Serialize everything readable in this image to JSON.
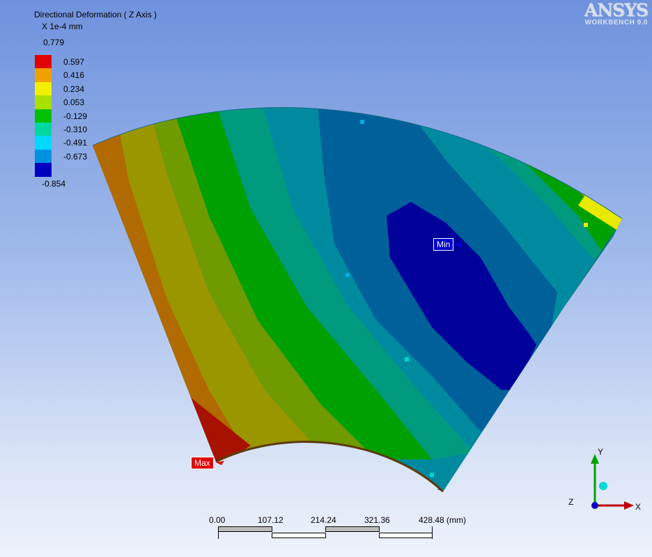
{
  "result": {
    "title": "Directional Deformation ( Z Axis )",
    "units": "X 1e-4 mm"
  },
  "legend": {
    "max_label": "0.779",
    "min_label": "-0.854",
    "items": [
      {
        "label": "0.597",
        "color": "#e00000"
      },
      {
        "label": "0.416",
        "color": "#f0a000"
      },
      {
        "label": "0.234",
        "color": "#f0f000"
      },
      {
        "label": "0.053",
        "color": "#a8e000"
      },
      {
        "label": "-0.129",
        "color": "#00c000"
      },
      {
        "label": "-0.310",
        "color": "#00d8a0"
      },
      {
        "label": "-0.491",
        "color": "#00d8ff"
      },
      {
        "label": "-0.673",
        "color": "#0090e0"
      },
      {
        "label": "",
        "color": "#0000c0"
      }
    ]
  },
  "logo": {
    "main": "ANSYS",
    "sub": "WORKBENCH 9.0"
  },
  "probes": {
    "max_label": "Max",
    "min_label": "Min"
  },
  "scale": {
    "ticks": [
      "0.00",
      "107.12",
      "214.24",
      "321.36",
      "428.48 (mm)"
    ]
  },
  "triad": {
    "x": "X",
    "y": "Y",
    "z": "Z"
  },
  "colors": {
    "band_red": "#a81000",
    "band_orange": "#b06a00",
    "band_olive": "#9a9600",
    "band_ygreen": "#6f9a00",
    "band_green": "#00a000",
    "band_teal": "#009a7e",
    "band_cyan": "#008aa0",
    "band_steel": "#00609a",
    "band_blue": "#00009a"
  }
}
